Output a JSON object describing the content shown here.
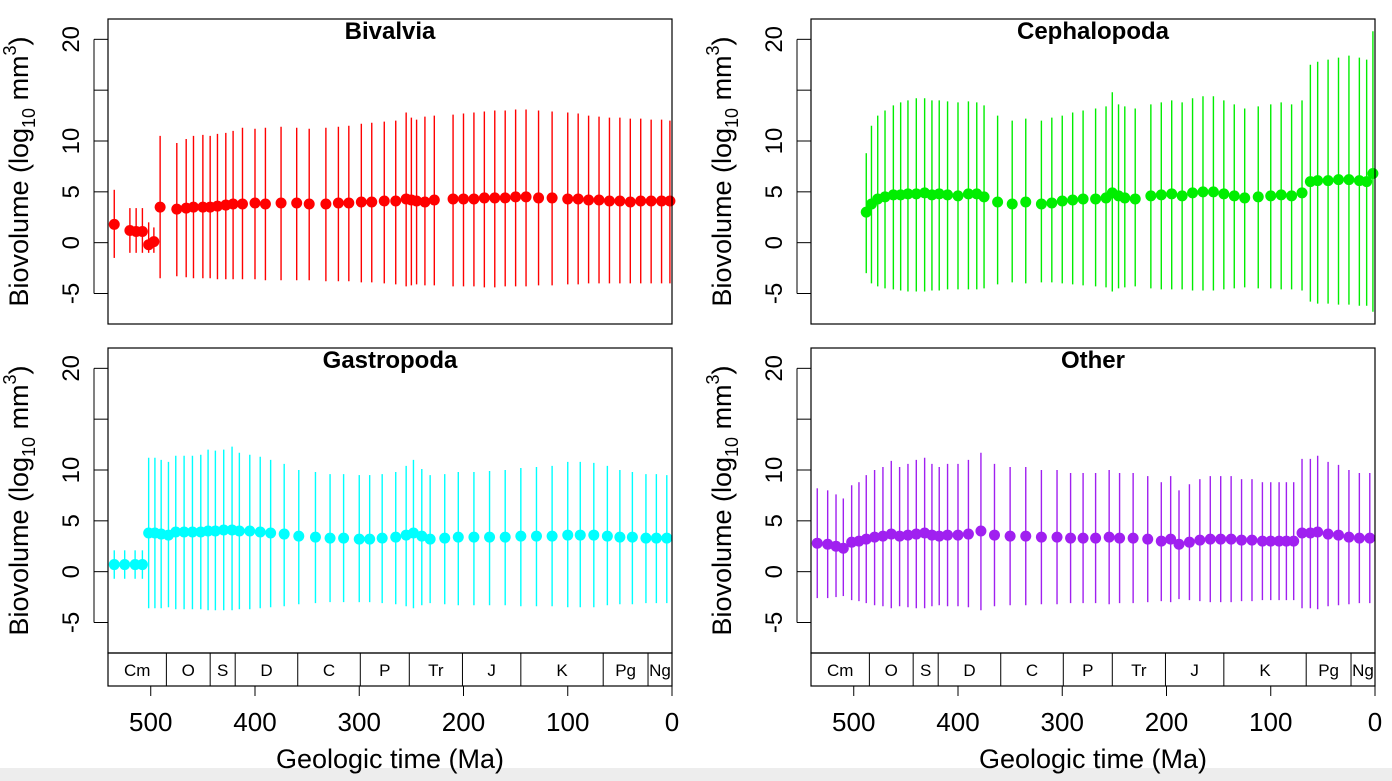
{
  "figure": {
    "ylabel_main": "Biovolume (log",
    "ylabel_sub": "10",
    "ylabel_unit": " mm",
    "ylabel_sup": "3",
    "ylabel_close": ")",
    "xlabel": "Geologic time (Ma)",
    "yticks": [
      -5,
      0,
      5,
      10,
      15,
      20
    ],
    "ytick_labels": [
      "-5",
      "0",
      "5",
      "10",
      "",
      "20"
    ],
    "xticks": [
      500,
      400,
      300,
      200,
      100,
      0
    ],
    "xtick_labels": [
      "500",
      "400",
      "300",
      "200",
      "100",
      "0"
    ],
    "periods": [
      {
        "label": "Cm",
        "start": 541,
        "end": 485
      },
      {
        "label": "O",
        "start": 485,
        "end": 443
      },
      {
        "label": "S",
        "start": 443,
        "end": 419
      },
      {
        "label": "D",
        "start": 419,
        "end": 359
      },
      {
        "label": "C",
        "start": 359,
        "end": 299
      },
      {
        "label": "P",
        "start": 299,
        "end": 252
      },
      {
        "label": "Tr",
        "start": 252,
        "end": 201
      },
      {
        "label": "J",
        "start": 201,
        "end": 145
      },
      {
        "label": "K",
        "start": 145,
        "end": 66
      },
      {
        "label": "Pg",
        "start": 66,
        "end": 23
      },
      {
        "label": "Ng",
        "start": 23,
        "end": 0
      }
    ]
  },
  "chart_data": [
    {
      "type": "scatter",
      "title": "Bivalvia",
      "color": "#ff0000",
      "xlim": [
        541,
        0
      ],
      "ylim": [
        -8,
        22
      ],
      "xlabel": "Geologic time (Ma)",
      "ylabel": "Biovolume (log10 mm3)",
      "x": [
        535,
        520,
        514,
        508,
        502,
        497,
        491,
        475,
        466,
        459,
        450,
        443,
        436,
        428,
        421,
        412,
        400,
        390,
        375,
        360,
        348,
        332,
        320,
        310,
        298,
        288,
        276,
        265,
        255,
        250,
        245,
        237,
        228,
        210,
        200,
        190,
        180,
        170,
        160,
        150,
        140,
        128,
        115,
        100,
        90,
        80,
        70,
        60,
        50,
        40,
        30,
        20,
        10,
        2
      ],
      "y": [
        1.8,
        1.2,
        1.1,
        1.1,
        -0.2,
        0.1,
        3.5,
        3.3,
        3.4,
        3.5,
        3.5,
        3.5,
        3.6,
        3.7,
        3.8,
        3.8,
        3.9,
        3.8,
        3.9,
        3.9,
        3.8,
        3.8,
        3.9,
        3.9,
        4.0,
        4.0,
        4.1,
        4.1,
        4.3,
        4.2,
        4.1,
        4.0,
        4.2,
        4.3,
        4.3,
        4.3,
        4.4,
        4.4,
        4.4,
        4.5,
        4.5,
        4.4,
        4.4,
        4.3,
        4.3,
        4.2,
        4.2,
        4.1,
        4.1,
        4.0,
        4.1,
        4.1,
        4.1,
        4.1
      ],
      "ylow": [
        -1.5,
        -1.0,
        -1.0,
        -1.0,
        -1.0,
        -1.0,
        -3.5,
        -3.3,
        -3.4,
        -3.5,
        -3.5,
        -3.5,
        -3.6,
        -3.6,
        -3.6,
        -3.6,
        -3.6,
        -3.7,
        -3.7,
        -3.7,
        -3.7,
        -3.8,
        -3.8,
        -3.8,
        -3.9,
        -3.9,
        -4.0,
        -4.1,
        -4.3,
        -4.2,
        -4.1,
        -4.2,
        -4.2,
        -4.3,
        -4.3,
        -4.3,
        -4.4,
        -4.4,
        -4.3,
        -4.3,
        -4.3,
        -4.2,
        -4.2,
        -4.1,
        -4.1,
        -4.0,
        -4.0,
        -4.0,
        -4.0,
        -4.0,
        -4.0,
        -4.0,
        -4.0,
        -4.0
      ],
      "yhigh": [
        5.2,
        3.4,
        3.4,
        3.4,
        2.0,
        1.5,
        10.5,
        9.8,
        10.2,
        10.5,
        10.6,
        10.5,
        10.7,
        10.8,
        11.0,
        11.3,
        11.2,
        11.3,
        11.4,
        11.3,
        11.2,
        11.3,
        11.4,
        11.5,
        11.7,
        11.8,
        11.9,
        12.0,
        12.8,
        12.3,
        12.1,
        12.4,
        12.5,
        12.6,
        12.7,
        12.8,
        12.9,
        13.0,
        13.0,
        13.1,
        13.1,
        13.0,
        12.9,
        12.8,
        12.7,
        12.5,
        12.4,
        12.3,
        12.3,
        12.2,
        12.2,
        12.1,
        12.1,
        12.0
      ]
    },
    {
      "type": "scatter",
      "title": "Cephalopoda",
      "color": "#00ee00",
      "xlim": [
        541,
        0
      ],
      "ylim": [
        -8,
        22
      ],
      "xlabel": "Geologic time (Ma)",
      "ylabel": "Biovolume (log10 mm3)",
      "x": [
        488,
        483,
        477,
        470,
        462,
        455,
        448,
        440,
        432,
        425,
        418,
        410,
        400,
        390,
        382,
        375,
        362,
        348,
        335,
        320,
        310,
        300,
        290,
        280,
        268,
        258,
        252,
        246,
        240,
        230,
        215,
        205,
        195,
        185,
        175,
        165,
        155,
        145,
        135,
        125,
        112,
        100,
        90,
        80,
        70,
        62,
        55,
        45,
        35,
        25,
        15,
        8,
        2
      ],
      "y": [
        3.0,
        3.8,
        4.3,
        4.5,
        4.7,
        4.7,
        4.8,
        4.8,
        4.9,
        4.7,
        4.8,
        4.7,
        4.6,
        4.8,
        4.8,
        4.5,
        4.0,
        3.8,
        4.0,
        3.8,
        3.9,
        4.1,
        4.2,
        4.3,
        4.3,
        4.4,
        4.9,
        4.6,
        4.4,
        4.3,
        4.6,
        4.7,
        4.8,
        4.6,
        4.9,
        5.0,
        5.0,
        4.8,
        4.6,
        4.4,
        4.5,
        4.6,
        4.7,
        4.6,
        4.9,
        6.0,
        6.1,
        6.1,
        6.2,
        6.2,
        6.1,
        6.0,
        6.8
      ],
      "ylow": [
        -3.0,
        -4.0,
        -4.3,
        -4.5,
        -4.6,
        -4.7,
        -4.8,
        -4.8,
        -4.8,
        -4.7,
        -4.7,
        -4.6,
        -4.6,
        -4.6,
        -4.6,
        -4.5,
        -4.1,
        -3.9,
        -4.0,
        -3.9,
        -3.9,
        -4.0,
        -4.1,
        -4.2,
        -4.3,
        -4.4,
        -4.8,
        -4.5,
        -4.4,
        -4.3,
        -4.5,
        -4.6,
        -4.6,
        -4.6,
        -4.7,
        -4.7,
        -4.7,
        -4.6,
        -4.5,
        -4.4,
        -4.5,
        -4.5,
        -4.6,
        -4.6,
        -4.7,
        -5.8,
        -6.0,
        -6.0,
        -6.1,
        -6.1,
        -6.2,
        -6.2,
        -6.8
      ],
      "yhigh": [
        8.8,
        11.5,
        12.5,
        13.0,
        13.5,
        13.8,
        14.0,
        14.2,
        14.2,
        14.0,
        14.0,
        13.9,
        13.8,
        13.9,
        13.8,
        13.5,
        12.5,
        12.0,
        12.2,
        12.0,
        12.3,
        12.5,
        12.8,
        13.0,
        13.2,
        13.4,
        14.8,
        13.6,
        13.4,
        13.2,
        13.6,
        13.8,
        14.0,
        13.8,
        14.2,
        14.4,
        14.4,
        14.0,
        13.6,
        13.2,
        13.4,
        13.6,
        13.8,
        13.6,
        14.0,
        17.5,
        17.8,
        18.0,
        18.2,
        18.4,
        18.2,
        18.0,
        20.8
      ]
    },
    {
      "type": "scatter",
      "title": "Gastropoda",
      "color": "#00ffff",
      "xlim": [
        541,
        0
      ],
      "ylim": [
        -8,
        22
      ],
      "xlabel": "Geologic time (Ma)",
      "ylabel": "Biovolume (log10 mm3)",
      "x": [
        535,
        525,
        515,
        508,
        502,
        496,
        490,
        483,
        476,
        468,
        460,
        452,
        445,
        438,
        430,
        422,
        415,
        405,
        395,
        385,
        372,
        358,
        342,
        328,
        315,
        300,
        290,
        278,
        265,
        255,
        248,
        240,
        232,
        218,
        205,
        190,
        175,
        160,
        145,
        130,
        115,
        100,
        88,
        75,
        62,
        50,
        38,
        25,
        15,
        5
      ],
      "y": [
        0.7,
        0.7,
        0.7,
        0.7,
        3.8,
        3.8,
        3.7,
        3.6,
        3.9,
        3.9,
        3.9,
        3.9,
        4.0,
        4.0,
        4.1,
        4.1,
        4.0,
        4.0,
        3.9,
        3.8,
        3.7,
        3.5,
        3.4,
        3.3,
        3.3,
        3.2,
        3.2,
        3.3,
        3.4,
        3.6,
        3.8,
        3.5,
        3.2,
        3.3,
        3.4,
        3.4,
        3.4,
        3.4,
        3.5,
        3.5,
        3.5,
        3.6,
        3.6,
        3.6,
        3.5,
        3.4,
        3.4,
        3.3,
        3.3,
        3.3
      ],
      "ylow": [
        -0.7,
        -0.7,
        -0.7,
        -0.7,
        -3.6,
        -3.6,
        -3.6,
        -3.5,
        -3.7,
        -3.7,
        -3.7,
        -3.7,
        -3.8,
        -3.8,
        -3.8,
        -3.8,
        -3.7,
        -3.7,
        -3.6,
        -3.5,
        -3.4,
        -3.2,
        -3.1,
        -3.0,
        -3.0,
        -3.0,
        -3.0,
        -3.1,
        -3.2,
        -3.4,
        -3.6,
        -3.3,
        -3.1,
        -3.2,
        -3.3,
        -3.3,
        -3.3,
        -3.3,
        -3.4,
        -3.4,
        -3.4,
        -3.5,
        -3.5,
        -3.5,
        -3.3,
        -3.2,
        -3.2,
        -3.1,
        -3.1,
        -3.1
      ],
      "yhigh": [
        2.1,
        2.1,
        2.1,
        2.1,
        11.2,
        11.2,
        11.0,
        10.8,
        11.4,
        11.4,
        11.4,
        11.5,
        12.0,
        11.9,
        12.0,
        12.3,
        11.7,
        11.5,
        11.3,
        11.0,
        10.6,
        10.0,
        9.8,
        9.6,
        9.6,
        9.5,
        9.5,
        9.6,
        9.8,
        10.4,
        11.0,
        10.1,
        9.5,
        9.6,
        9.8,
        9.8,
        9.9,
        10.0,
        10.2,
        10.3,
        10.4,
        10.8,
        10.8,
        10.7,
        10.4,
        10.0,
        9.8,
        9.6,
        9.6,
        9.5
      ]
    },
    {
      "type": "scatter",
      "title": "Other",
      "color": "#a020f0",
      "xlim": [
        541,
        0
      ],
      "ylim": [
        -8,
        22
      ],
      "xlabel": "Geologic time (Ma)",
      "ylabel": "Biovolume (log10 mm3)",
      "x": [
        535,
        525,
        517,
        510,
        502,
        495,
        488,
        480,
        472,
        464,
        456,
        448,
        440,
        432,
        425,
        418,
        410,
        400,
        390,
        378,
        365,
        350,
        335,
        320,
        305,
        292,
        280,
        268,
        255,
        245,
        232,
        218,
        205,
        196,
        188,
        178,
        168,
        158,
        148,
        138,
        128,
        118,
        108,
        100,
        92,
        85,
        78,
        70,
        62,
        55,
        45,
        35,
        25,
        15,
        5
      ],
      "y": [
        2.8,
        2.7,
        2.5,
        2.3,
        2.9,
        3.0,
        3.2,
        3.4,
        3.5,
        3.7,
        3.5,
        3.6,
        3.7,
        3.8,
        3.6,
        3.5,
        3.6,
        3.6,
        3.7,
        4.0,
        3.6,
        3.5,
        3.5,
        3.4,
        3.4,
        3.3,
        3.3,
        3.3,
        3.4,
        3.3,
        3.3,
        3.2,
        3.0,
        3.2,
        2.7,
        2.9,
        3.1,
        3.2,
        3.2,
        3.2,
        3.1,
        3.1,
        3.0,
        3.0,
        3.0,
        3.0,
        3.0,
        3.8,
        3.8,
        3.9,
        3.7,
        3.6,
        3.4,
        3.3,
        3.3
      ],
      "ylow": [
        -2.6,
        -2.6,
        -2.5,
        -2.4,
        -2.8,
        -2.9,
        -3.1,
        -3.3,
        -3.4,
        -3.6,
        -3.4,
        -3.5,
        -3.6,
        -3.6,
        -3.4,
        -3.3,
        -3.4,
        -3.4,
        -3.5,
        -3.8,
        -3.4,
        -3.3,
        -3.3,
        -3.2,
        -3.2,
        -3.1,
        -3.1,
        -3.1,
        -3.2,
        -3.1,
        -3.1,
        -3.0,
        -2.9,
        -3.0,
        -2.7,
        -2.8,
        -2.9,
        -3.0,
        -3.0,
        -3.0,
        -2.9,
        -2.9,
        -2.8,
        -2.8,
        -2.8,
        -2.8,
        -2.8,
        -3.6,
        -3.6,
        -3.7,
        -3.4,
        -3.3,
        -3.2,
        -3.1,
        -3.1
      ],
      "yhigh": [
        8.2,
        8.0,
        7.6,
        7.2,
        8.5,
        8.8,
        9.5,
        10.0,
        10.3,
        10.9,
        10.3,
        10.6,
        11.0,
        11.2,
        10.6,
        10.3,
        10.6,
        10.6,
        11.0,
        11.7,
        10.6,
        10.3,
        10.3,
        10.0,
        10.0,
        9.7,
        9.7,
        9.7,
        10.0,
        9.7,
        9.7,
        9.4,
        8.8,
        9.4,
        8.0,
        8.6,
        9.1,
        9.4,
        9.4,
        9.4,
        9.1,
        9.1,
        8.8,
        8.8,
        8.8,
        8.8,
        8.8,
        11.1,
        11.1,
        11.4,
        10.8,
        10.5,
        10.0,
        9.7,
        9.7
      ]
    }
  ]
}
